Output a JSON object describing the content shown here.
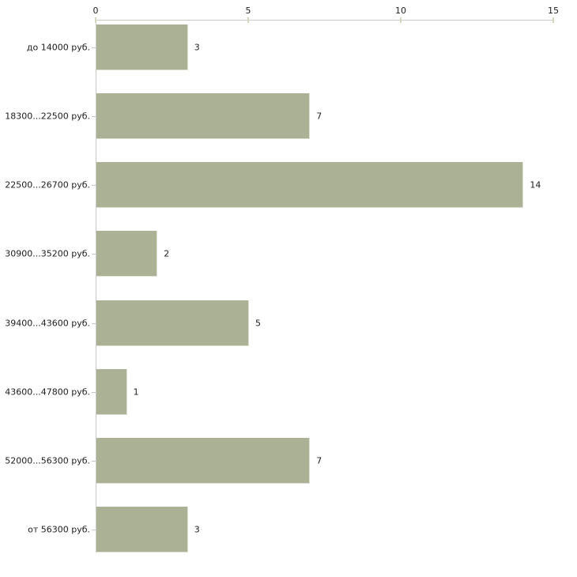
{
  "chart_data": {
    "type": "bar",
    "orientation": "horizontal",
    "title": "",
    "xlabel": "",
    "ylabel": "",
    "categories": [
      "до 14000 руб.",
      "18300...22500 руб.",
      "22500...26700 руб.",
      "30900...35200 руб.",
      "39400...43600 руб.",
      "43600...47800 руб.",
      "52000...56300 руб.",
      "от 56300 руб."
    ],
    "values": [
      3,
      7,
      14,
      2,
      5,
      1,
      7,
      3
    ],
    "value_labels": [
      "3",
      "7",
      "14",
      "2",
      "5",
      "1",
      "7",
      "3"
    ],
    "xlim": [
      0,
      15
    ],
    "x_ticks": [
      0,
      5,
      10,
      15
    ],
    "x_tick_labels": [
      "0",
      "5",
      "10",
      "15"
    ],
    "x_axis_position": "top",
    "grid": false,
    "legend": null,
    "colors": {
      "bar_fill": "#abb194",
      "bar_border": "#dee1d3",
      "axis_line": "#c9c9c9",
      "tick_mark": "#d3d6bd",
      "category_tick": "#c4c6bc",
      "text": "#1c1c1c",
      "background": "#ffffff"
    }
  }
}
